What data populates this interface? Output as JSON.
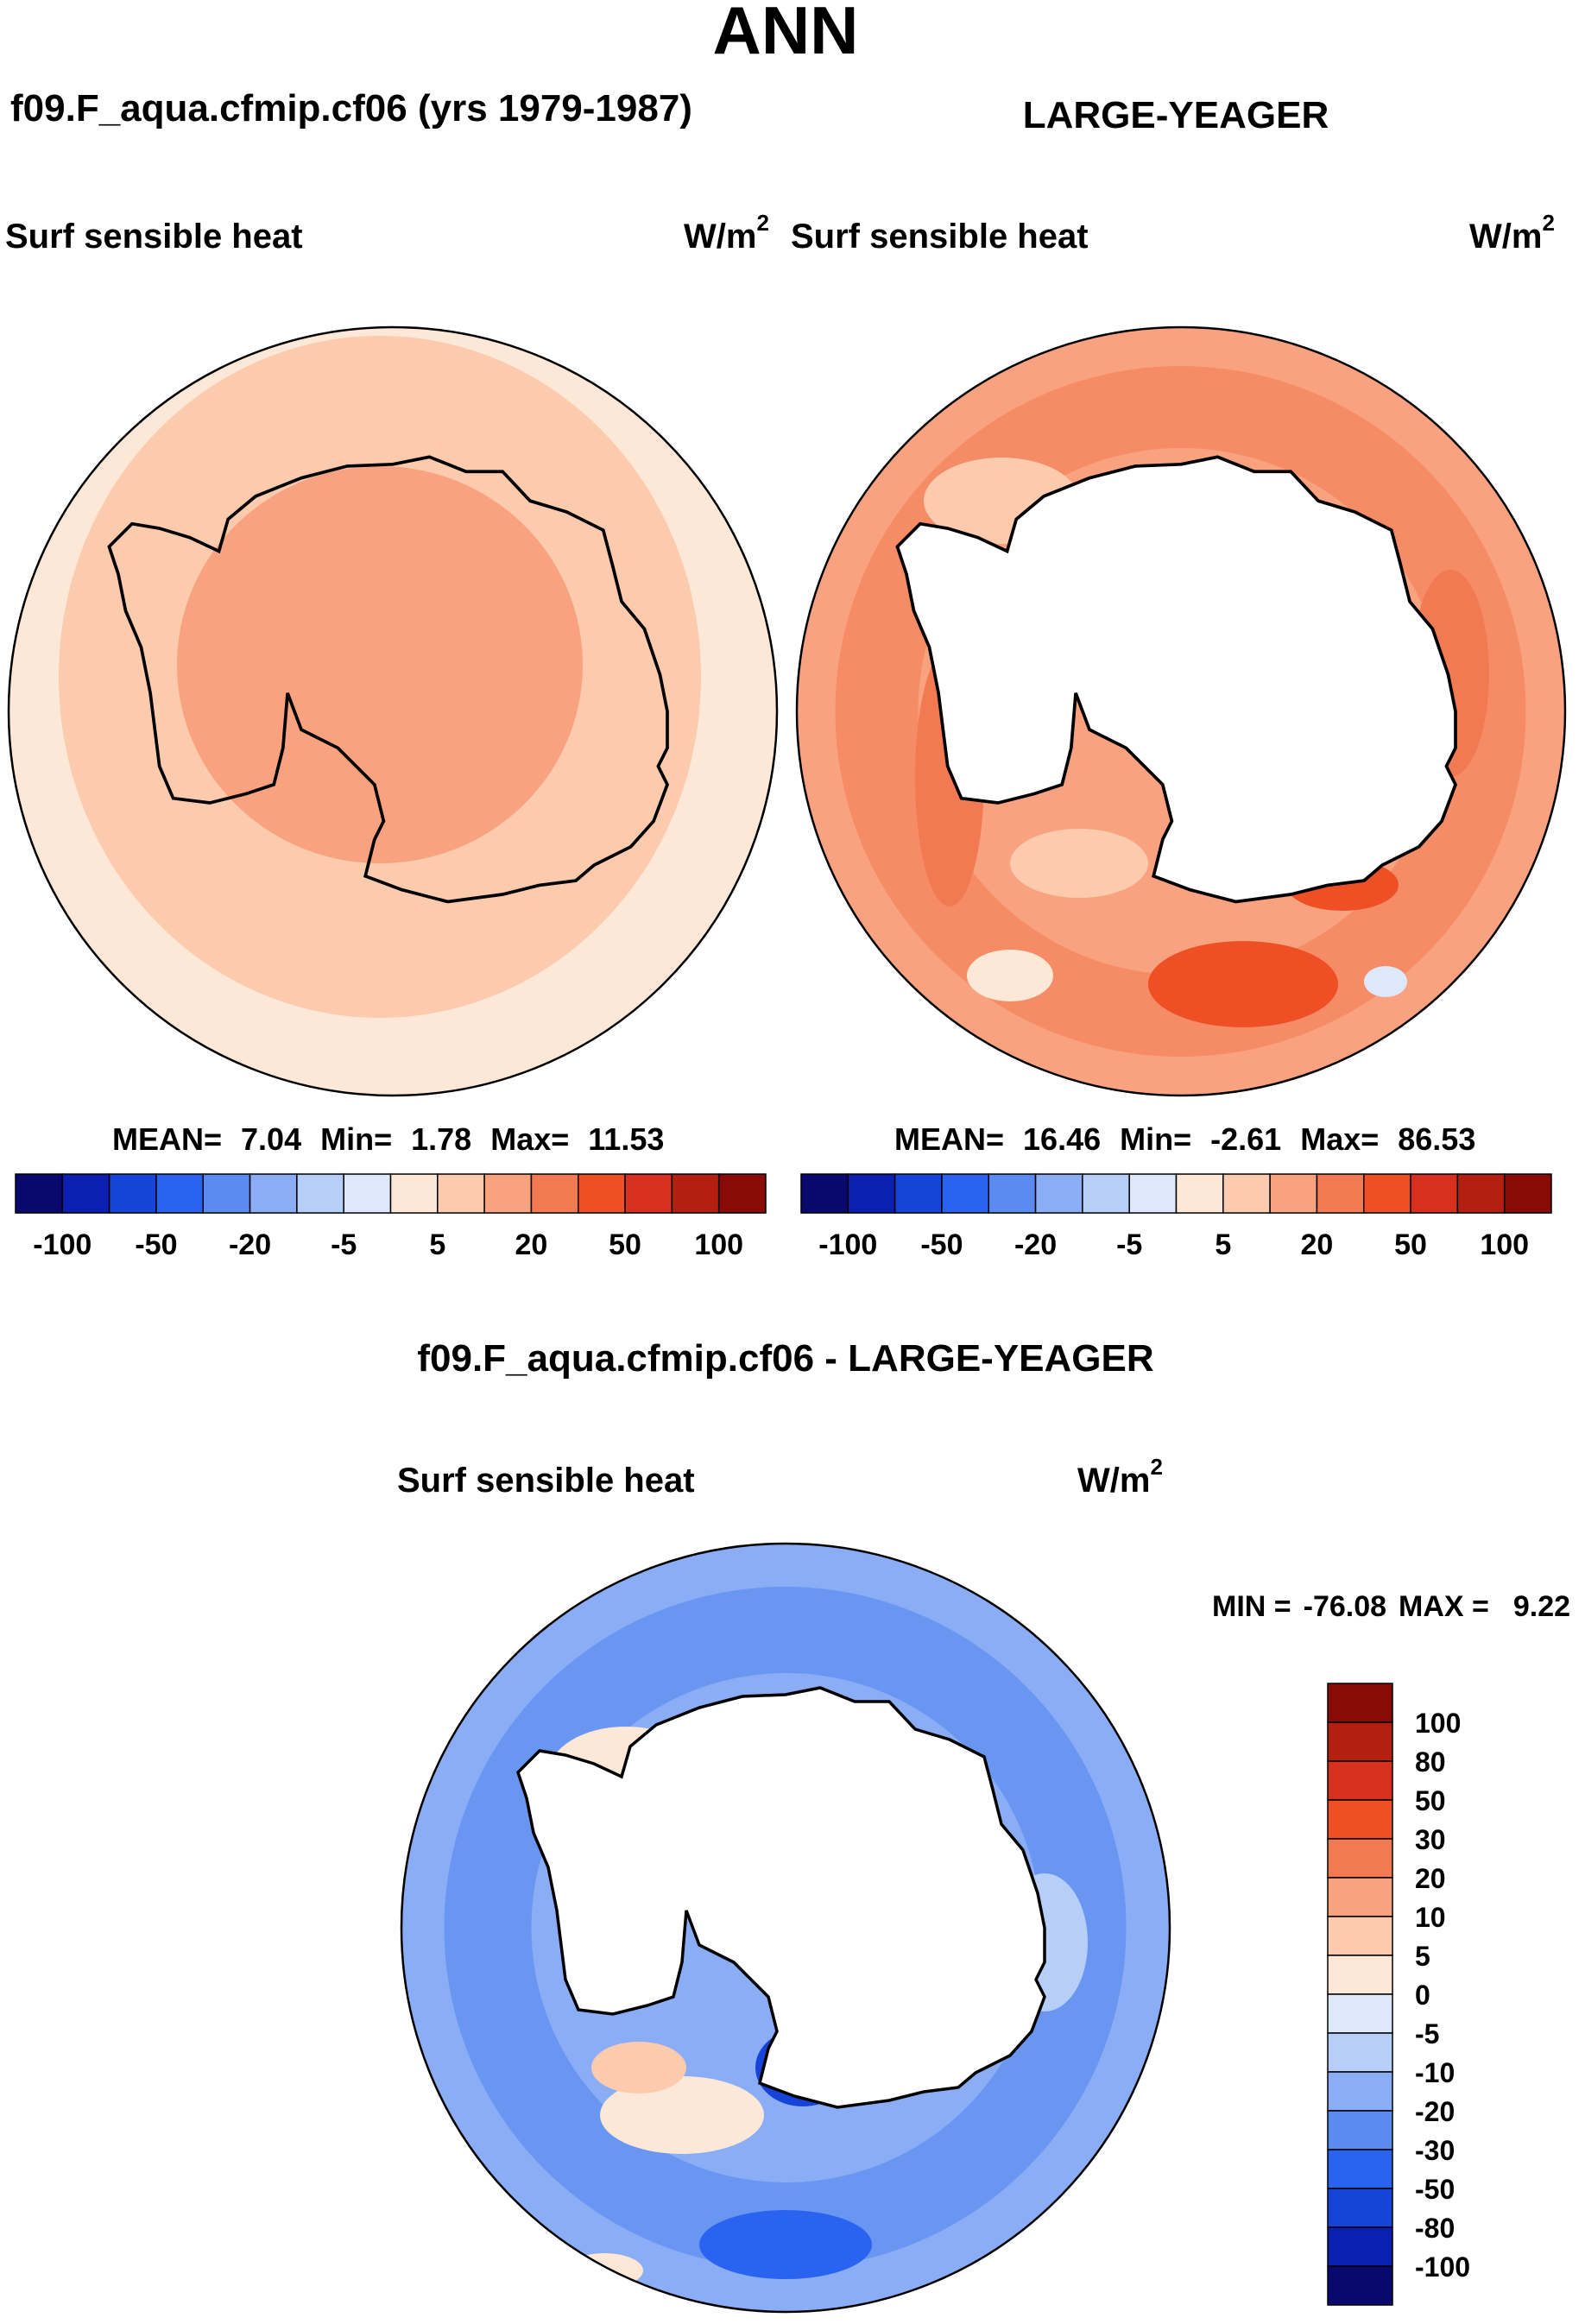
{
  "season": "ANN",
  "panel_test": {
    "case_title": "f09.F_aqua.cfmip.cf06 (yrs 1979-1987)",
    "field": "Surf sensible heat",
    "units": "W/m",
    "units_exp": "2",
    "stats": {
      "mean_label": "MEAN=",
      "mean": "7.04",
      "min_label": "Min=",
      "min": "1.78",
      "max_label": "Max=",
      "max": "11.53"
    }
  },
  "panel_obs": {
    "case_title": "LARGE-YEAGER",
    "field": "Surf sensible heat",
    "units": "W/m",
    "units_exp": "2",
    "stats": {
      "mean_label": "MEAN=",
      "mean": "16.46",
      "min_label": "Min=",
      "min": "-2.61",
      "max_label": "Max=",
      "max": "86.53"
    }
  },
  "panel_diff": {
    "case_title": "f09.F_aqua.cfmip.cf06 - LARGE-YEAGER",
    "field": "Surf sensible heat",
    "units": "W/m",
    "units_exp": "2",
    "minmax": {
      "min_label": "MIN =",
      "min": "-76.08",
      "max_label": "MAX =",
      "max": "9.22"
    }
  },
  "colorbar_top": {
    "colors": [
      "#08086f",
      "#0b1fb0",
      "#1644d8",
      "#2a63f0",
      "#5b8bf0",
      "#8aadf5",
      "#b6cef8",
      "#dde8fb",
      "#fde8d8",
      "#fccaad",
      "#f9a27f",
      "#f27a52",
      "#ee4f25",
      "#d7311d",
      "#b4200f",
      "#8a0a05"
    ],
    "labels": [
      "-100",
      "-50",
      "-20",
      "-5",
      "5",
      "20",
      "50",
      "100"
    ]
  },
  "colorbar_diff": {
    "colors_top_to_bottom": [
      "#8a0a05",
      "#b4200f",
      "#d7311d",
      "#ee4f25",
      "#f27a52",
      "#f9a27f",
      "#fccaad",
      "#fde8d8",
      "#dde8fb",
      "#b6cef8",
      "#8aadf5",
      "#5b8bf0",
      "#2a63f0",
      "#1644d8",
      "#0b1fb0",
      "#08086f"
    ],
    "labels": [
      "100",
      "80",
      "50",
      "30",
      "20",
      "10",
      "5",
      "0",
      "-5",
      "-10",
      "-20",
      "-30",
      "-50",
      "-80",
      "-100"
    ]
  },
  "chart_data": [
    {
      "type": "heatmap",
      "projection": "south-polar-stereographic",
      "title": "f09.F_aqua.cfmip.cf06 (yrs 1979-1987)",
      "variable": "Surf sensible heat",
      "units": "W/m2",
      "mean": 7.04,
      "min": 1.78,
      "max": 11.53,
      "levels": [
        -100,
        -80,
        -50,
        -30,
        -20,
        -10,
        -5,
        0,
        5,
        10,
        20,
        30,
        50,
        80,
        100
      ],
      "regions": [
        {
          "region": "outer ocean ring",
          "approx_value": 3
        },
        {
          "region": "mid-latitude ocean ring",
          "approx_value": 7
        },
        {
          "region": "Antarctic interior",
          "approx_value": 11
        }
      ]
    },
    {
      "type": "heatmap",
      "projection": "south-polar-stereographic",
      "title": "LARGE-YEAGER",
      "variable": "Surf sensible heat",
      "units": "W/m2",
      "mean": 16.46,
      "min": -2.61,
      "max": 86.53,
      "levels": [
        -100,
        -80,
        -50,
        -30,
        -20,
        -10,
        -5,
        0,
        5,
        10,
        20,
        30,
        50,
        80,
        100
      ],
      "regions": [
        {
          "region": "open ocean background",
          "approx_value": 15
        },
        {
          "region": "circumpolar band",
          "approx_value": 25
        },
        {
          "region": "Ross Sea / sea-ice edge maxima",
          "approx_value": 45
        },
        {
          "region": "Antarctic continent",
          "approx_value": "missing"
        }
      ]
    },
    {
      "type": "heatmap",
      "projection": "south-polar-stereographic",
      "title": "f09.F_aqua.cfmip.cf06 - LARGE-YEAGER",
      "variable": "Surf sensible heat",
      "units": "W/m2",
      "min": -76.08,
      "max": 9.22,
      "levels": [
        -100,
        -80,
        -50,
        -30,
        -20,
        -10,
        -5,
        0,
        5,
        10,
        20,
        30,
        50,
        80,
        100
      ],
      "regions": [
        {
          "region": "open ocean background",
          "approx_value": -10
        },
        {
          "region": "circumpolar band",
          "approx_value": -20
        },
        {
          "region": "Ross Sea",
          "approx_value": -60
        },
        {
          "region": "Weddell / Bellingshausen patches",
          "approx_value": 3
        },
        {
          "region": "Antarctic continent",
          "approx_value": "missing"
        }
      ]
    }
  ]
}
